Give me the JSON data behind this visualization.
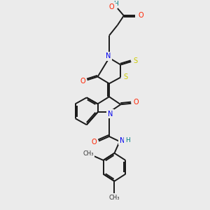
{
  "bg_color": "#ebebeb",
  "bond_color": "#1a1a1a",
  "bond_width": 1.4,
  "atom_colors": {
    "N": "#0000ee",
    "O": "#ff2200",
    "S": "#cccc00",
    "H": "#008080",
    "C": "#1a1a1a"
  },
  "figsize": [
    3.0,
    3.0
  ],
  "dpi": 100
}
